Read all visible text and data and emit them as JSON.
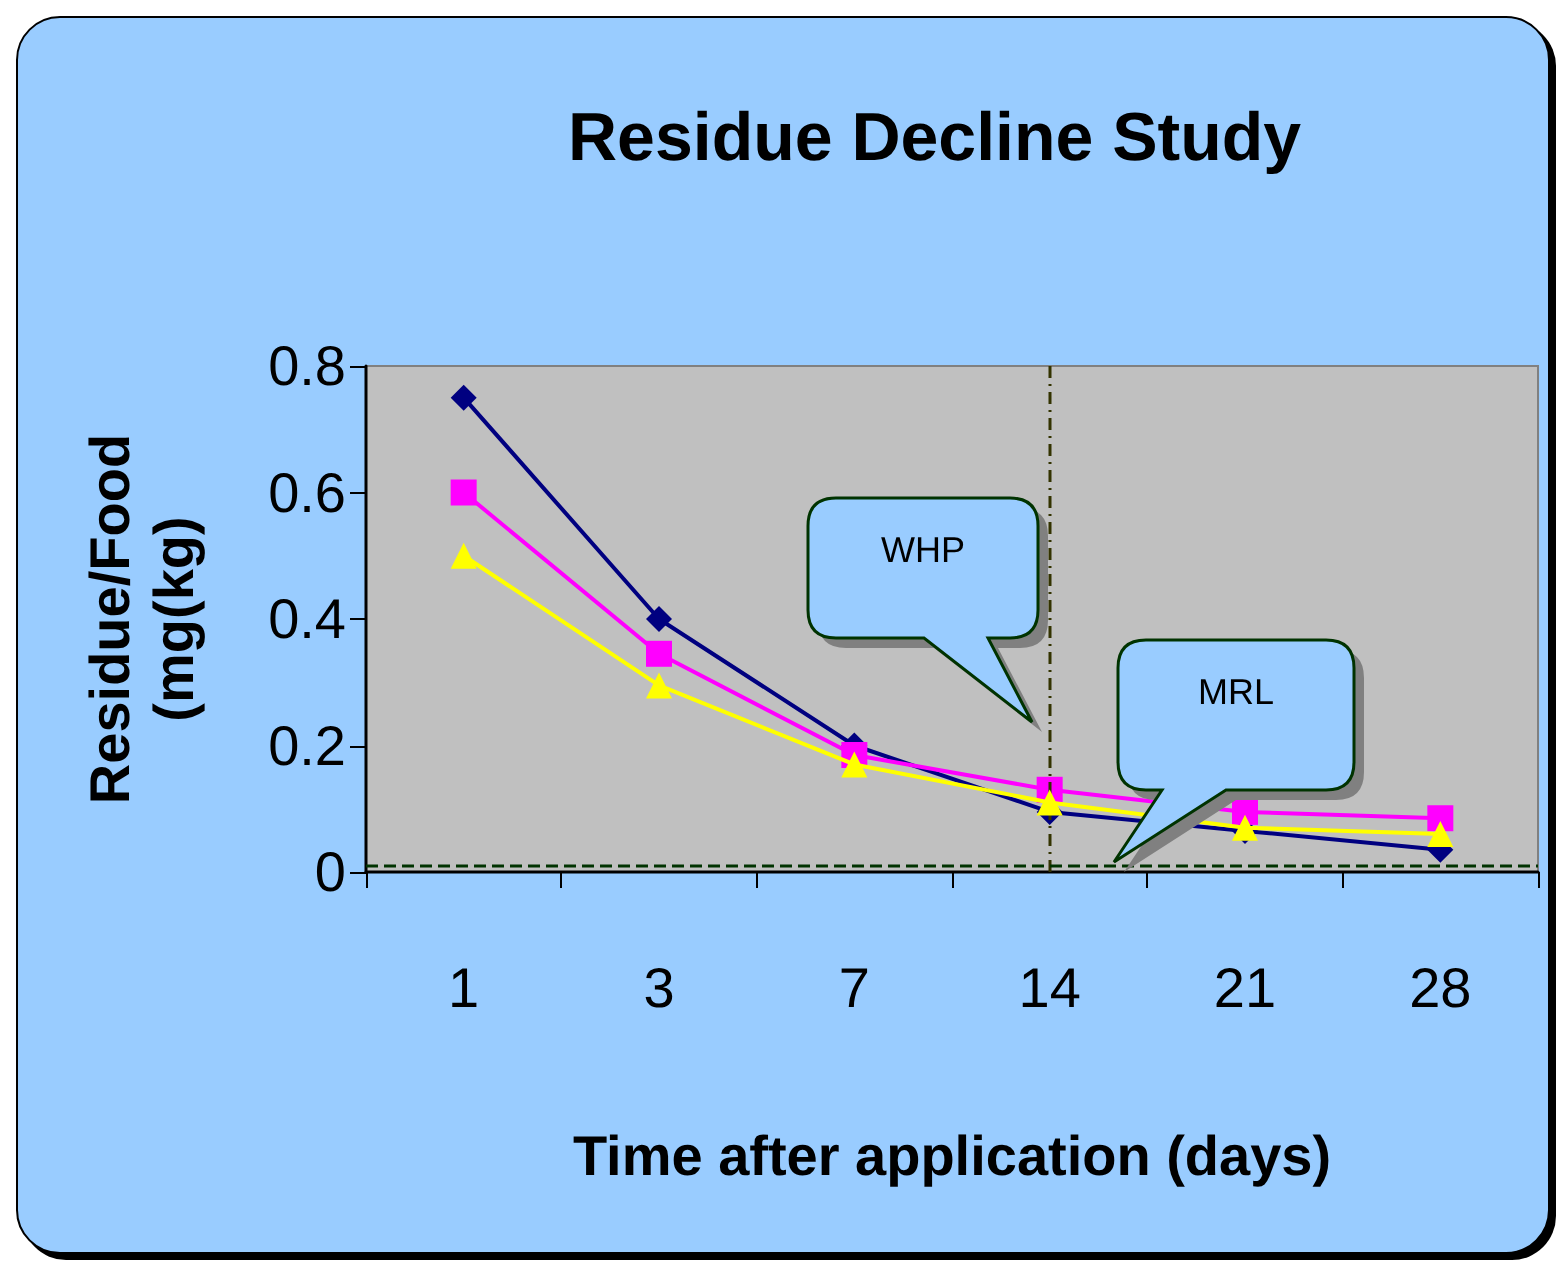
{
  "chart_data": {
    "type": "line",
    "title": "Residue Decline Study",
    "xlabel": "Time after application (days)",
    "ylabel": "Residue/Food\n(mg(kg)",
    "categories": [
      "1",
      "3",
      "7",
      "14",
      "21",
      "28"
    ],
    "series": [
      {
        "color": "#000080",
        "marker": "diamond",
        "values": [
          0.75,
          0.4,
          0.2,
          0.095,
          0.065,
          0.035
        ]
      },
      {
        "color": "#ff00ff",
        "marker": "square",
        "values": [
          0.6,
          0.345,
          0.185,
          0.13,
          0.095,
          0.085
        ]
      },
      {
        "color": "#ffff00",
        "marker": "triangle",
        "values": [
          0.5,
          0.295,
          0.17,
          0.11,
          0.07,
          0.06
        ]
      }
    ],
    "ylim": [
      0,
      0.8
    ],
    "yticks": [
      0,
      0.2,
      0.4,
      0.6,
      0.8
    ],
    "grid": false,
    "ref_lines": [
      {
        "axis": "x",
        "value": "14",
        "color": "#333300",
        "line_style": "dashdot"
      },
      {
        "axis": "y",
        "value": 0.01,
        "color": "#003300",
        "line_style": "dashed"
      }
    ],
    "annotations": [
      "WHP",
      "MRL"
    ]
  }
}
